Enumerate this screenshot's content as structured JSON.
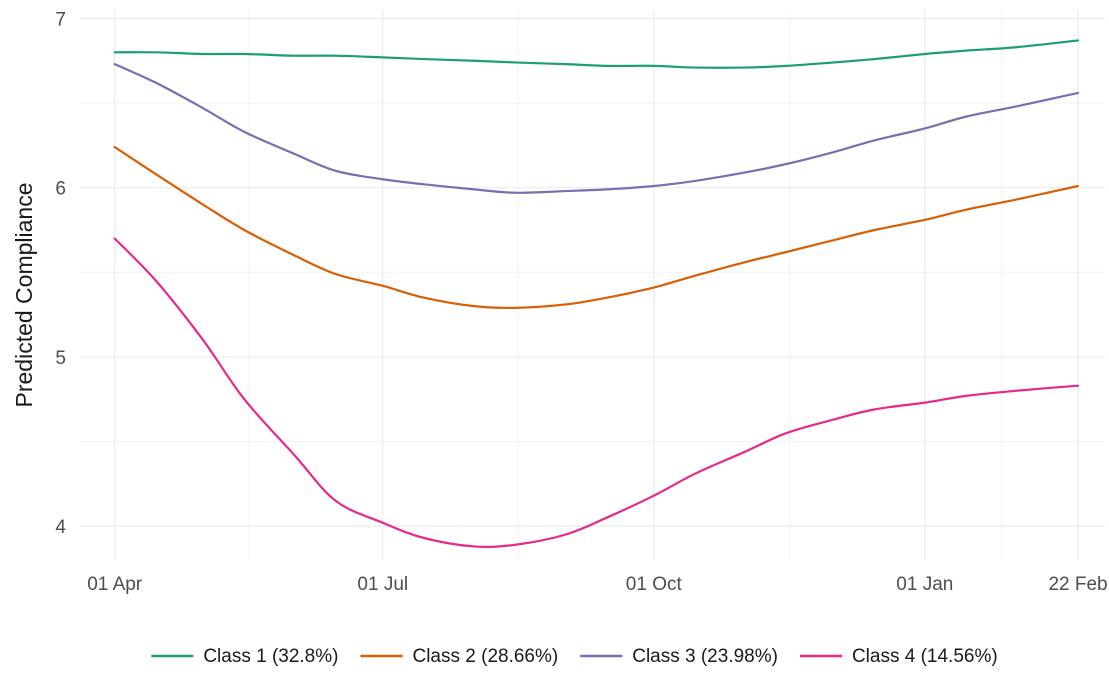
{
  "chart_data": {
    "type": "line",
    "title": "",
    "xlabel": "",
    "ylabel": "Predicted Compliance",
    "x_ticks": [
      "01 Apr",
      "01 Jul",
      "01 Oct",
      "01 Jan",
      "22 Feb"
    ],
    "y_ticks": [
      "4",
      "5",
      "6",
      "7"
    ],
    "ylim": [
      3.8,
      7.05
    ],
    "xlim": [
      "01 Apr",
      "22 Feb"
    ],
    "grid": true,
    "legend_position": "bottom",
    "x_dates": [
      "01 Apr",
      "15 Apr",
      "01 May",
      "15 May",
      "01 Jun",
      "15 Jun",
      "01 Jul",
      "15 Jul",
      "01 Aug",
      "15 Aug",
      "01 Sep",
      "15 Sep",
      "01 Oct",
      "15 Oct",
      "01 Nov",
      "15 Nov",
      "01 Dec",
      "15 Dec",
      "01 Jan",
      "15 Jan",
      "01 Feb",
      "22 Feb"
    ],
    "series": [
      {
        "name": "Class 1 (32.8%)",
        "color": "#1b9e77",
        "values": [
          6.8,
          6.8,
          6.79,
          6.79,
          6.78,
          6.78,
          6.77,
          6.76,
          6.75,
          6.74,
          6.73,
          6.72,
          6.72,
          6.71,
          6.71,
          6.72,
          6.74,
          6.76,
          6.79,
          6.81,
          6.83,
          6.87
        ]
      },
      {
        "name": "Class 2 (28.66%)",
        "color": "#d95f02",
        "values": [
          6.24,
          6.08,
          5.9,
          5.75,
          5.6,
          5.49,
          5.42,
          5.35,
          5.3,
          5.29,
          5.31,
          5.35,
          5.41,
          5.48,
          5.56,
          5.62,
          5.69,
          5.75,
          5.81,
          5.87,
          5.93,
          6.01
        ]
      },
      {
        "name": "Class 3 (23.98%)",
        "color": "#7570b3",
        "values": [
          6.73,
          6.62,
          6.47,
          6.33,
          6.2,
          6.1,
          6.05,
          6.02,
          5.99,
          5.97,
          5.98,
          5.99,
          6.01,
          6.04,
          6.09,
          6.14,
          6.21,
          6.28,
          6.35,
          6.42,
          6.48,
          6.56
        ]
      },
      {
        "name": "Class 4 (14.56%)",
        "color": "#e7298a",
        "values": [
          5.7,
          5.45,
          5.1,
          4.75,
          4.42,
          4.15,
          4.02,
          3.93,
          3.88,
          3.89,
          3.95,
          4.05,
          4.18,
          4.31,
          4.44,
          4.55,
          4.63,
          4.69,
          4.73,
          4.77,
          4.8,
          4.83
        ]
      }
    ]
  }
}
